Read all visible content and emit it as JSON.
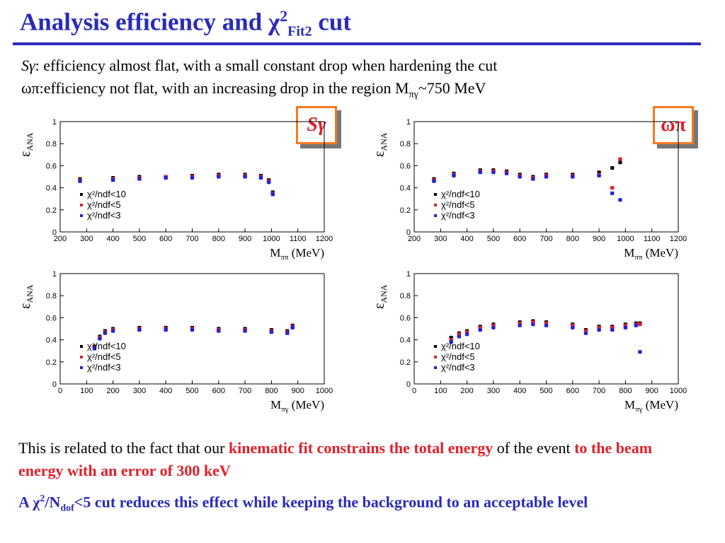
{
  "title": {
    "main": "Analysis efficiency and χ",
    "sup": "2",
    "sub": "Fit2",
    "tail": " cut"
  },
  "intro": {
    "line1_label": "Sγ",
    "line1_text": ": efficiency almost flat, with a small constant drop when hardening the cut",
    "line2_label": "ωπ",
    "line2_text": ":efficiency not flat, with an increasing drop in the region M",
    "line2_sub": "πγ",
    "line2_tail": "~750 MeV"
  },
  "badges": {
    "left": "Sγ",
    "right": "ωπ"
  },
  "legend_entries": [
    "χ²/ndf<10",
    "χ²/ndf<5",
    "χ²/ndf<3"
  ],
  "colors": {
    "title": "#2b2bb8",
    "red": "#e0202a",
    "badge_border": "#f47a20",
    "series": [
      "#000000",
      "#e0202a",
      "#2020e0"
    ]
  },
  "chart_data": [
    {
      "id": "tl",
      "type": "scatter",
      "ylabel": "ε",
      "ylabel_sub": "ANA",
      "xlabel": "M",
      "xlabel_sub": "ππ",
      "xlabel_tail": " (MeV)",
      "xlim": [
        200,
        1200
      ],
      "ylim": [
        0,
        1
      ],
      "xticks": [
        200,
        300,
        400,
        500,
        600,
        700,
        800,
        900,
        1000,
        1100,
        1200
      ],
      "yticks": [
        0,
        0.2,
        0.4,
        0.6,
        0.8,
        1
      ],
      "series": [
        {
          "name": "χ²/ndf<10",
          "x": [
            275,
            400,
            500,
            600,
            700,
            800,
            900,
            960,
            990,
            1005
          ],
          "y": [
            0.48,
            0.49,
            0.5,
            0.5,
            0.51,
            0.52,
            0.52,
            0.51,
            0.47,
            0.36
          ]
        },
        {
          "name": "χ²/ndf<5",
          "x": [
            275,
            400,
            500,
            600,
            700,
            800,
            900,
            960,
            990,
            1005
          ],
          "y": [
            0.47,
            0.48,
            0.49,
            0.5,
            0.5,
            0.51,
            0.51,
            0.5,
            0.46,
            0.35
          ]
        },
        {
          "name": "χ²/ndf<3",
          "x": [
            275,
            400,
            500,
            600,
            700,
            800,
            900,
            960,
            990,
            1005
          ],
          "y": [
            0.46,
            0.47,
            0.48,
            0.49,
            0.49,
            0.5,
            0.5,
            0.49,
            0.45,
            0.34
          ]
        }
      ]
    },
    {
      "id": "tr",
      "type": "scatter",
      "ylabel": "ε",
      "ylabel_sub": "ANA",
      "xlabel": "M",
      "xlabel_sub": "ππ",
      "xlabel_tail": " (MeV)",
      "xlim": [
        200,
        1200
      ],
      "ylim": [
        0,
        1
      ],
      "xticks": [
        200,
        300,
        400,
        500,
        600,
        700,
        800,
        900,
        1000,
        1100,
        1200
      ],
      "yticks": [
        0,
        0.2,
        0.4,
        0.6,
        0.8,
        1
      ],
      "series": [
        {
          "name": "χ²/ndf<10",
          "x": [
            275,
            350,
            450,
            500,
            550,
            600,
            650,
            700,
            800,
            900,
            950,
            980
          ],
          "y": [
            0.48,
            0.53,
            0.56,
            0.56,
            0.55,
            0.52,
            0.5,
            0.52,
            0.52,
            0.54,
            0.58,
            0.63
          ]
        },
        {
          "name": "χ²/ndf<5",
          "x": [
            275,
            350,
            450,
            500,
            550,
            600,
            650,
            700,
            800,
            900,
            950,
            980
          ],
          "y": [
            0.47,
            0.52,
            0.55,
            0.55,
            0.54,
            0.51,
            0.49,
            0.51,
            0.51,
            0.52,
            0.4,
            0.66
          ]
        },
        {
          "name": "χ²/ndf<3",
          "x": [
            275,
            350,
            450,
            500,
            550,
            600,
            650,
            700,
            800,
            900,
            950,
            980
          ],
          "y": [
            0.46,
            0.51,
            0.54,
            0.54,
            0.53,
            0.5,
            0.48,
            0.5,
            0.5,
            0.51,
            0.35,
            0.29
          ]
        }
      ]
    },
    {
      "id": "bl",
      "type": "scatter",
      "ylabel": "ε",
      "ylabel_sub": "ANA",
      "xlabel": "M",
      "xlabel_sub": "πγ",
      "xlabel_tail": " (MeV)",
      "xlim": [
        0,
        1000
      ],
      "ylim": [
        0,
        1
      ],
      "xticks": [
        0,
        100,
        200,
        300,
        400,
        500,
        600,
        700,
        800,
        900,
        1000
      ],
      "yticks": [
        0,
        0.2,
        0.4,
        0.6,
        0.8,
        1
      ],
      "series": [
        {
          "name": "χ²/ndf<10",
          "x": [
            130,
            150,
            170,
            200,
            300,
            400,
            500,
            600,
            700,
            800,
            860,
            880
          ],
          "y": [
            0.34,
            0.43,
            0.48,
            0.5,
            0.51,
            0.51,
            0.51,
            0.5,
            0.5,
            0.49,
            0.48,
            0.53
          ]
        },
        {
          "name": "χ²/ndf<5",
          "x": [
            130,
            150,
            170,
            200,
            300,
            400,
            500,
            600,
            700,
            800,
            860,
            880
          ],
          "y": [
            0.33,
            0.42,
            0.47,
            0.49,
            0.5,
            0.5,
            0.5,
            0.49,
            0.49,
            0.48,
            0.47,
            0.52
          ]
        },
        {
          "name": "χ²/ndf<3",
          "x": [
            130,
            150,
            170,
            200,
            300,
            400,
            500,
            600,
            700,
            800,
            860,
            880
          ],
          "y": [
            0.32,
            0.41,
            0.46,
            0.48,
            0.49,
            0.49,
            0.49,
            0.48,
            0.48,
            0.47,
            0.46,
            0.51
          ]
        }
      ]
    },
    {
      "id": "br",
      "type": "scatter",
      "ylabel": "ε",
      "ylabel_sub": "ANA",
      "xlabel": "M",
      "xlabel_sub": "πγ",
      "xlabel_tail": " (MeV)",
      "xlim": [
        0,
        1000
      ],
      "ylim": [
        0,
        1
      ],
      "xticks": [
        0,
        100,
        200,
        300,
        400,
        500,
        600,
        700,
        800,
        900,
        1000
      ],
      "yticks": [
        0,
        0.2,
        0.4,
        0.6,
        0.8,
        1
      ],
      "series": [
        {
          "name": "χ²/ndf<10",
          "x": [
            140,
            170,
            200,
            250,
            300,
            400,
            450,
            500,
            600,
            650,
            700,
            750,
            800,
            840,
            855
          ],
          "y": [
            0.42,
            0.46,
            0.48,
            0.52,
            0.54,
            0.56,
            0.57,
            0.56,
            0.54,
            0.49,
            0.52,
            0.52,
            0.54,
            0.55,
            0.55
          ]
        },
        {
          "name": "χ²/ndf<5",
          "x": [
            140,
            170,
            200,
            250,
            300,
            400,
            450,
            500,
            600,
            650,
            700,
            750,
            800,
            840,
            855
          ],
          "y": [
            0.4,
            0.45,
            0.47,
            0.51,
            0.53,
            0.55,
            0.56,
            0.55,
            0.53,
            0.48,
            0.51,
            0.51,
            0.53,
            0.54,
            0.54
          ]
        },
        {
          "name": "χ²/ndf<3",
          "x": [
            140,
            170,
            200,
            250,
            300,
            400,
            450,
            500,
            600,
            650,
            700,
            750,
            800,
            840,
            855
          ],
          "y": [
            0.38,
            0.43,
            0.45,
            0.49,
            0.51,
            0.53,
            0.54,
            0.53,
            0.51,
            0.46,
            0.49,
            0.49,
            0.51,
            0.53,
            0.29
          ]
        }
      ]
    }
  ],
  "notes": {
    "p1_a": "This is related to the fact that our ",
    "p1_b": "kinematic fit constrains the total energy",
    "p1_c": " of the event ",
    "p1_d": "to the beam energy with an error of 300 keV",
    "p2_a": "A χ",
    "p2_sup": "2",
    "p2_b": "/N",
    "p2_sub": "dof",
    "p2_c": "<5 cut reduces this effect while keeping the background to an acceptable level"
  }
}
